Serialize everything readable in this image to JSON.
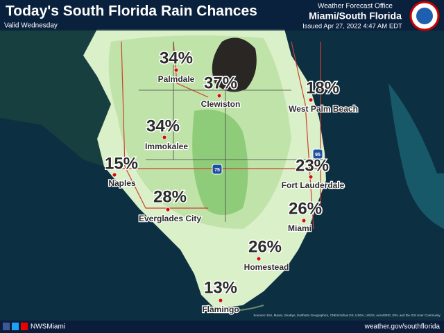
{
  "header": {
    "title": "Today's South Florida Rain Chances",
    "valid": "Valid Wednesday",
    "office_label": "Weather Forecast Office",
    "office_name": "Miami/South Florida",
    "issued": "Issued Apr 27, 2022 4:47 AM EDT"
  },
  "cities": [
    {
      "name": "Palmdale",
      "chance": "34%"
    },
    {
      "name": "Clewiston",
      "chance": "37%"
    },
    {
      "name": "West Palm Beach",
      "chance": "18%"
    },
    {
      "name": "Immokalee",
      "chance": "34%"
    },
    {
      "name": "Naples",
      "chance": "15%"
    },
    {
      "name": "Fort Lauderdale",
      "chance": "23%"
    },
    {
      "name": "Everglades City",
      "chance": "28%"
    },
    {
      "name": "Miami",
      "chance": "26%"
    },
    {
      "name": "Homestead",
      "chance": "26%"
    },
    {
      "name": "Flamingo",
      "chance": "13%"
    }
  ],
  "highways": [
    "75",
    "95"
  ],
  "attribution": "Sources: Esri, Maxar, GeoEye, Earthstar Geographics, CNES/Airbus DS, USDA, USGS, AeroGRID, IGN, and the GIS User Community",
  "footer": {
    "social": "NWSMiami",
    "website": "weather.gov/southflorida"
  }
}
